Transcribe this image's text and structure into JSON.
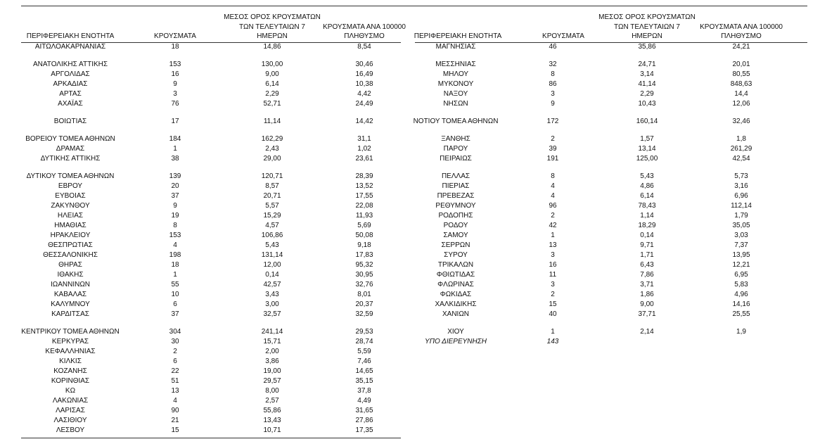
{
  "headers": {
    "region": "ΠΕΡΙΦΕΡΕΙΑΚΗ ΕΝΟΤΗΤΑ",
    "cases": "ΚΡΟΥΣΜΑΤΑ",
    "avg_line1": "ΜΕΣΟΣ ΟΡΟΣ ΚΡΟΥΣΜΑΤΩΝ",
    "avg_line2": "ΤΩΝ ΤΕΛΕΥΤΑΙΩΝ 7",
    "avg_line3": "ΗΜΕΡΩΝ",
    "per100k_line1": "ΚΡΟΥΣΜΑΤΑ ΑΝΑ 100000",
    "per100k_line2": "ΠΛΗΘΥΣΜΟ"
  },
  "left_table": [
    {
      "region": "ΑΙΤΩΛΟΑΚΑΡΝΑΝΙΑΣ",
      "cases": "18",
      "avg7": "14,86",
      "per100k": "8,54"
    },
    {
      "gap": true,
      "region": "ΑΝΑΤΟΛΙΚΗΣ ΑΤΤΙΚΗΣ",
      "cases": "153",
      "avg7": "130,00",
      "per100k": "30,46"
    },
    {
      "region": "ΑΡΓΟΛΙΔΑΣ",
      "cases": "16",
      "avg7": "9,00",
      "per100k": "16,49"
    },
    {
      "region": "ΑΡΚΑΔΙΑΣ",
      "cases": "9",
      "avg7": "6,14",
      "per100k": "10,38"
    },
    {
      "region": "ΑΡΤΑΣ",
      "cases": "3",
      "avg7": "2,29",
      "per100k": "4,42"
    },
    {
      "region": "ΑΧΑΪΑΣ",
      "cases": "76",
      "avg7": "52,71",
      "per100k": "24,49"
    },
    {
      "gap": true,
      "region": "ΒΟΙΩΤΙΑΣ",
      "cases": "17",
      "avg7": "11,14",
      "per100k": "14,42"
    },
    {
      "gap": true,
      "region": "ΒΟΡΕΙΟΥ ΤΟΜΕΑ ΑΘΗΝΩΝ",
      "cases": "184",
      "avg7": "162,29",
      "per100k": "31,1"
    },
    {
      "region": "ΔΡΑΜΑΣ",
      "cases": "1",
      "avg7": "2,43",
      "per100k": "1,02"
    },
    {
      "region": "ΔΥΤΙΚΗΣ ΑΤΤΙΚΗΣ",
      "cases": "38",
      "avg7": "29,00",
      "per100k": "23,61"
    },
    {
      "gap": true,
      "region": "ΔΥΤΙΚΟΥ ΤΟΜΕΑ ΑΘΗΝΩΝ",
      "cases": "139",
      "avg7": "120,71",
      "per100k": "28,39"
    },
    {
      "region": "ΕΒΡΟΥ",
      "cases": "20",
      "avg7": "8,57",
      "per100k": "13,52"
    },
    {
      "region": "ΕΥΒΟΙΑΣ",
      "cases": "37",
      "avg7": "20,71",
      "per100k": "17,55"
    },
    {
      "region": "ΖΑΚΥΝΘΟΥ",
      "cases": "9",
      "avg7": "5,57",
      "per100k": "22,08"
    },
    {
      "region": "ΗΛΕΙΑΣ",
      "cases": "19",
      "avg7": "15,29",
      "per100k": "11,93"
    },
    {
      "region": "ΗΜΑΘΙΑΣ",
      "cases": "8",
      "avg7": "4,57",
      "per100k": "5,69"
    },
    {
      "region": "ΗΡΑΚΛΕΙΟΥ",
      "cases": "153",
      "avg7": "106,86",
      "per100k": "50,08"
    },
    {
      "region": "ΘΕΣΠΡΩΤΙΑΣ",
      "cases": "4",
      "avg7": "5,43",
      "per100k": "9,18"
    },
    {
      "region": "ΘΕΣΣΑΛΟΝΙΚΗΣ",
      "cases": "198",
      "avg7": "131,14",
      "per100k": "17,83"
    },
    {
      "region": "ΘΗΡΑΣ",
      "cases": "18",
      "avg7": "12,00",
      "per100k": "95,32"
    },
    {
      "region": "ΙΘΑΚΗΣ",
      "cases": "1",
      "avg7": "0,14",
      "per100k": "30,95"
    },
    {
      "region": "ΙΩΑΝΝΙΝΩΝ",
      "cases": "55",
      "avg7": "42,57",
      "per100k": "32,76"
    },
    {
      "region": "ΚΑΒΑΛΑΣ",
      "cases": "10",
      "avg7": "3,43",
      "per100k": "8,01"
    },
    {
      "region": "ΚΑΛΥΜΝΟΥ",
      "cases": "6",
      "avg7": "3,00",
      "per100k": "20,37"
    },
    {
      "region": "ΚΑΡΔΙΤΣΑΣ",
      "cases": "37",
      "avg7": "32,57",
      "per100k": "32,59"
    },
    {
      "gap": true,
      "region": "ΚΕΝΤΡΙΚΟΥ ΤΟΜΕΑ ΑΘΗΝΩΝ",
      "cases": "304",
      "avg7": "241,14",
      "per100k": "29,53"
    },
    {
      "region": "ΚΕΡΚΥΡΑΣ",
      "cases": "30",
      "avg7": "15,71",
      "per100k": "28,74"
    },
    {
      "region": "ΚΕΦΑΛΛΗΝΙΑΣ",
      "cases": "2",
      "avg7": "2,00",
      "per100k": "5,59"
    },
    {
      "region": "ΚΙΛΚΙΣ",
      "cases": "6",
      "avg7": "3,86",
      "per100k": "7,46"
    },
    {
      "region": "ΚΟΖΑΝΗΣ",
      "cases": "22",
      "avg7": "19,00",
      "per100k": "14,65"
    },
    {
      "region": "ΚΟΡΙΝΘΙΑΣ",
      "cases": "51",
      "avg7": "29,57",
      "per100k": "35,15"
    },
    {
      "region": "ΚΩ",
      "cases": "13",
      "avg7": "8,00",
      "per100k": "37,8"
    },
    {
      "region": "ΛΑΚΩΝΙΑΣ",
      "cases": "4",
      "avg7": "2,57",
      "per100k": "4,49"
    },
    {
      "region": "ΛΑΡΙΣΑΣ",
      "cases": "90",
      "avg7": "55,86",
      "per100k": "31,65"
    },
    {
      "region": "ΛΑΣΙΘΙΟΥ",
      "cases": "21",
      "avg7": "13,43",
      "per100k": "27,86"
    },
    {
      "region": "ΛΕΣΒΟΥ",
      "cases": "15",
      "avg7": "10,71",
      "per100k": "17,35"
    }
  ],
  "right_table": [
    {
      "region": "ΜΑΓΝΗΣΙΑΣ",
      "cases": "46",
      "avg7": "35,86",
      "per100k": "24,21"
    },
    {
      "gap": true,
      "region": "ΜΕΣΣΗΝΙΑΣ",
      "cases": "32",
      "avg7": "24,71",
      "per100k": "20,01"
    },
    {
      "region": "ΜΗΛΟΥ",
      "cases": "8",
      "avg7": "3,14",
      "per100k": "80,55"
    },
    {
      "region": "ΜΥΚΟΝΟΥ",
      "cases": "86",
      "avg7": "41,14",
      "per100k": "848,63"
    },
    {
      "region": "ΝΑΞΟΥ",
      "cases": "3",
      "avg7": "2,29",
      "per100k": "14,4"
    },
    {
      "region": "ΝΗΣΩΝ",
      "cases": "9",
      "avg7": "10,43",
      "per100k": "12,06"
    },
    {
      "gap": true,
      "region": "ΝΟΤΙΟΥ ΤΟΜΕΑ ΑΘΗΝΩΝ",
      "cases": "172",
      "avg7": "160,14",
      "per100k": "32,46"
    },
    {
      "gap": true,
      "region": "ΞΑΝΘΗΣ",
      "cases": "2",
      "avg7": "1,57",
      "per100k": "1,8"
    },
    {
      "region": "ΠΑΡΟΥ",
      "cases": "39",
      "avg7": "13,14",
      "per100k": "261,29"
    },
    {
      "region": "ΠΕΙΡΑΙΩΣ",
      "cases": "191",
      "avg7": "125,00",
      "per100k": "42,54"
    },
    {
      "gap": true,
      "region": "ΠΕΛΛΑΣ",
      "cases": "8",
      "avg7": "5,43",
      "per100k": "5,73"
    },
    {
      "region": "ΠΙΕΡΙΑΣ",
      "cases": "4",
      "avg7": "4,86",
      "per100k": "3,16"
    },
    {
      "region": "ΠΡΕΒΕΖΑΣ",
      "cases": "4",
      "avg7": "6,14",
      "per100k": "6,96"
    },
    {
      "region": "ΡΕΘΥΜΝΟΥ",
      "cases": "96",
      "avg7": "78,43",
      "per100k": "112,14"
    },
    {
      "region": "ΡΟΔΟΠΗΣ",
      "cases": "2",
      "avg7": "1,14",
      "per100k": "1,79"
    },
    {
      "region": "ΡΟΔΟΥ",
      "cases": "42",
      "avg7": "18,29",
      "per100k": "35,05"
    },
    {
      "region": "ΣΑΜΟΥ",
      "cases": "1",
      "avg7": "0,14",
      "per100k": "3,03"
    },
    {
      "region": "ΣΕΡΡΩΝ",
      "cases": "13",
      "avg7": "9,71",
      "per100k": "7,37"
    },
    {
      "region": "ΣΥΡΟΥ",
      "cases": "3",
      "avg7": "1,71",
      "per100k": "13,95"
    },
    {
      "region": "ΤΡΙΚΑΛΩΝ",
      "cases": "16",
      "avg7": "6,43",
      "per100k": "12,21"
    },
    {
      "region": "ΦΘΙΩΤΙΔΑΣ",
      "cases": "11",
      "avg7": "7,86",
      "per100k": "6,95"
    },
    {
      "region": "ΦΛΩΡΙΝΑΣ",
      "cases": "3",
      "avg7": "3,71",
      "per100k": "5,83"
    },
    {
      "region": "ΦΩΚΙΔΑΣ",
      "cases": "2",
      "avg7": "1,86",
      "per100k": "4,96"
    },
    {
      "region": "ΧΑΛΚΙΔΙΚΗΣ",
      "cases": "15",
      "avg7": "9,00",
      "per100k": "14,16"
    },
    {
      "region": "ΧΑΝΙΩΝ",
      "cases": "40",
      "avg7": "37,71",
      "per100k": "25,55"
    },
    {
      "gap": true,
      "region": "ΧΙΟΥ",
      "cases": "1",
      "avg7": "2,14",
      "per100k": "1,9"
    },
    {
      "italic": true,
      "region": "ΥΠΟ ΔΙΕΡΕΥΝΗΣΗ",
      "cases": "143",
      "avg7": "",
      "per100k": ""
    }
  ]
}
